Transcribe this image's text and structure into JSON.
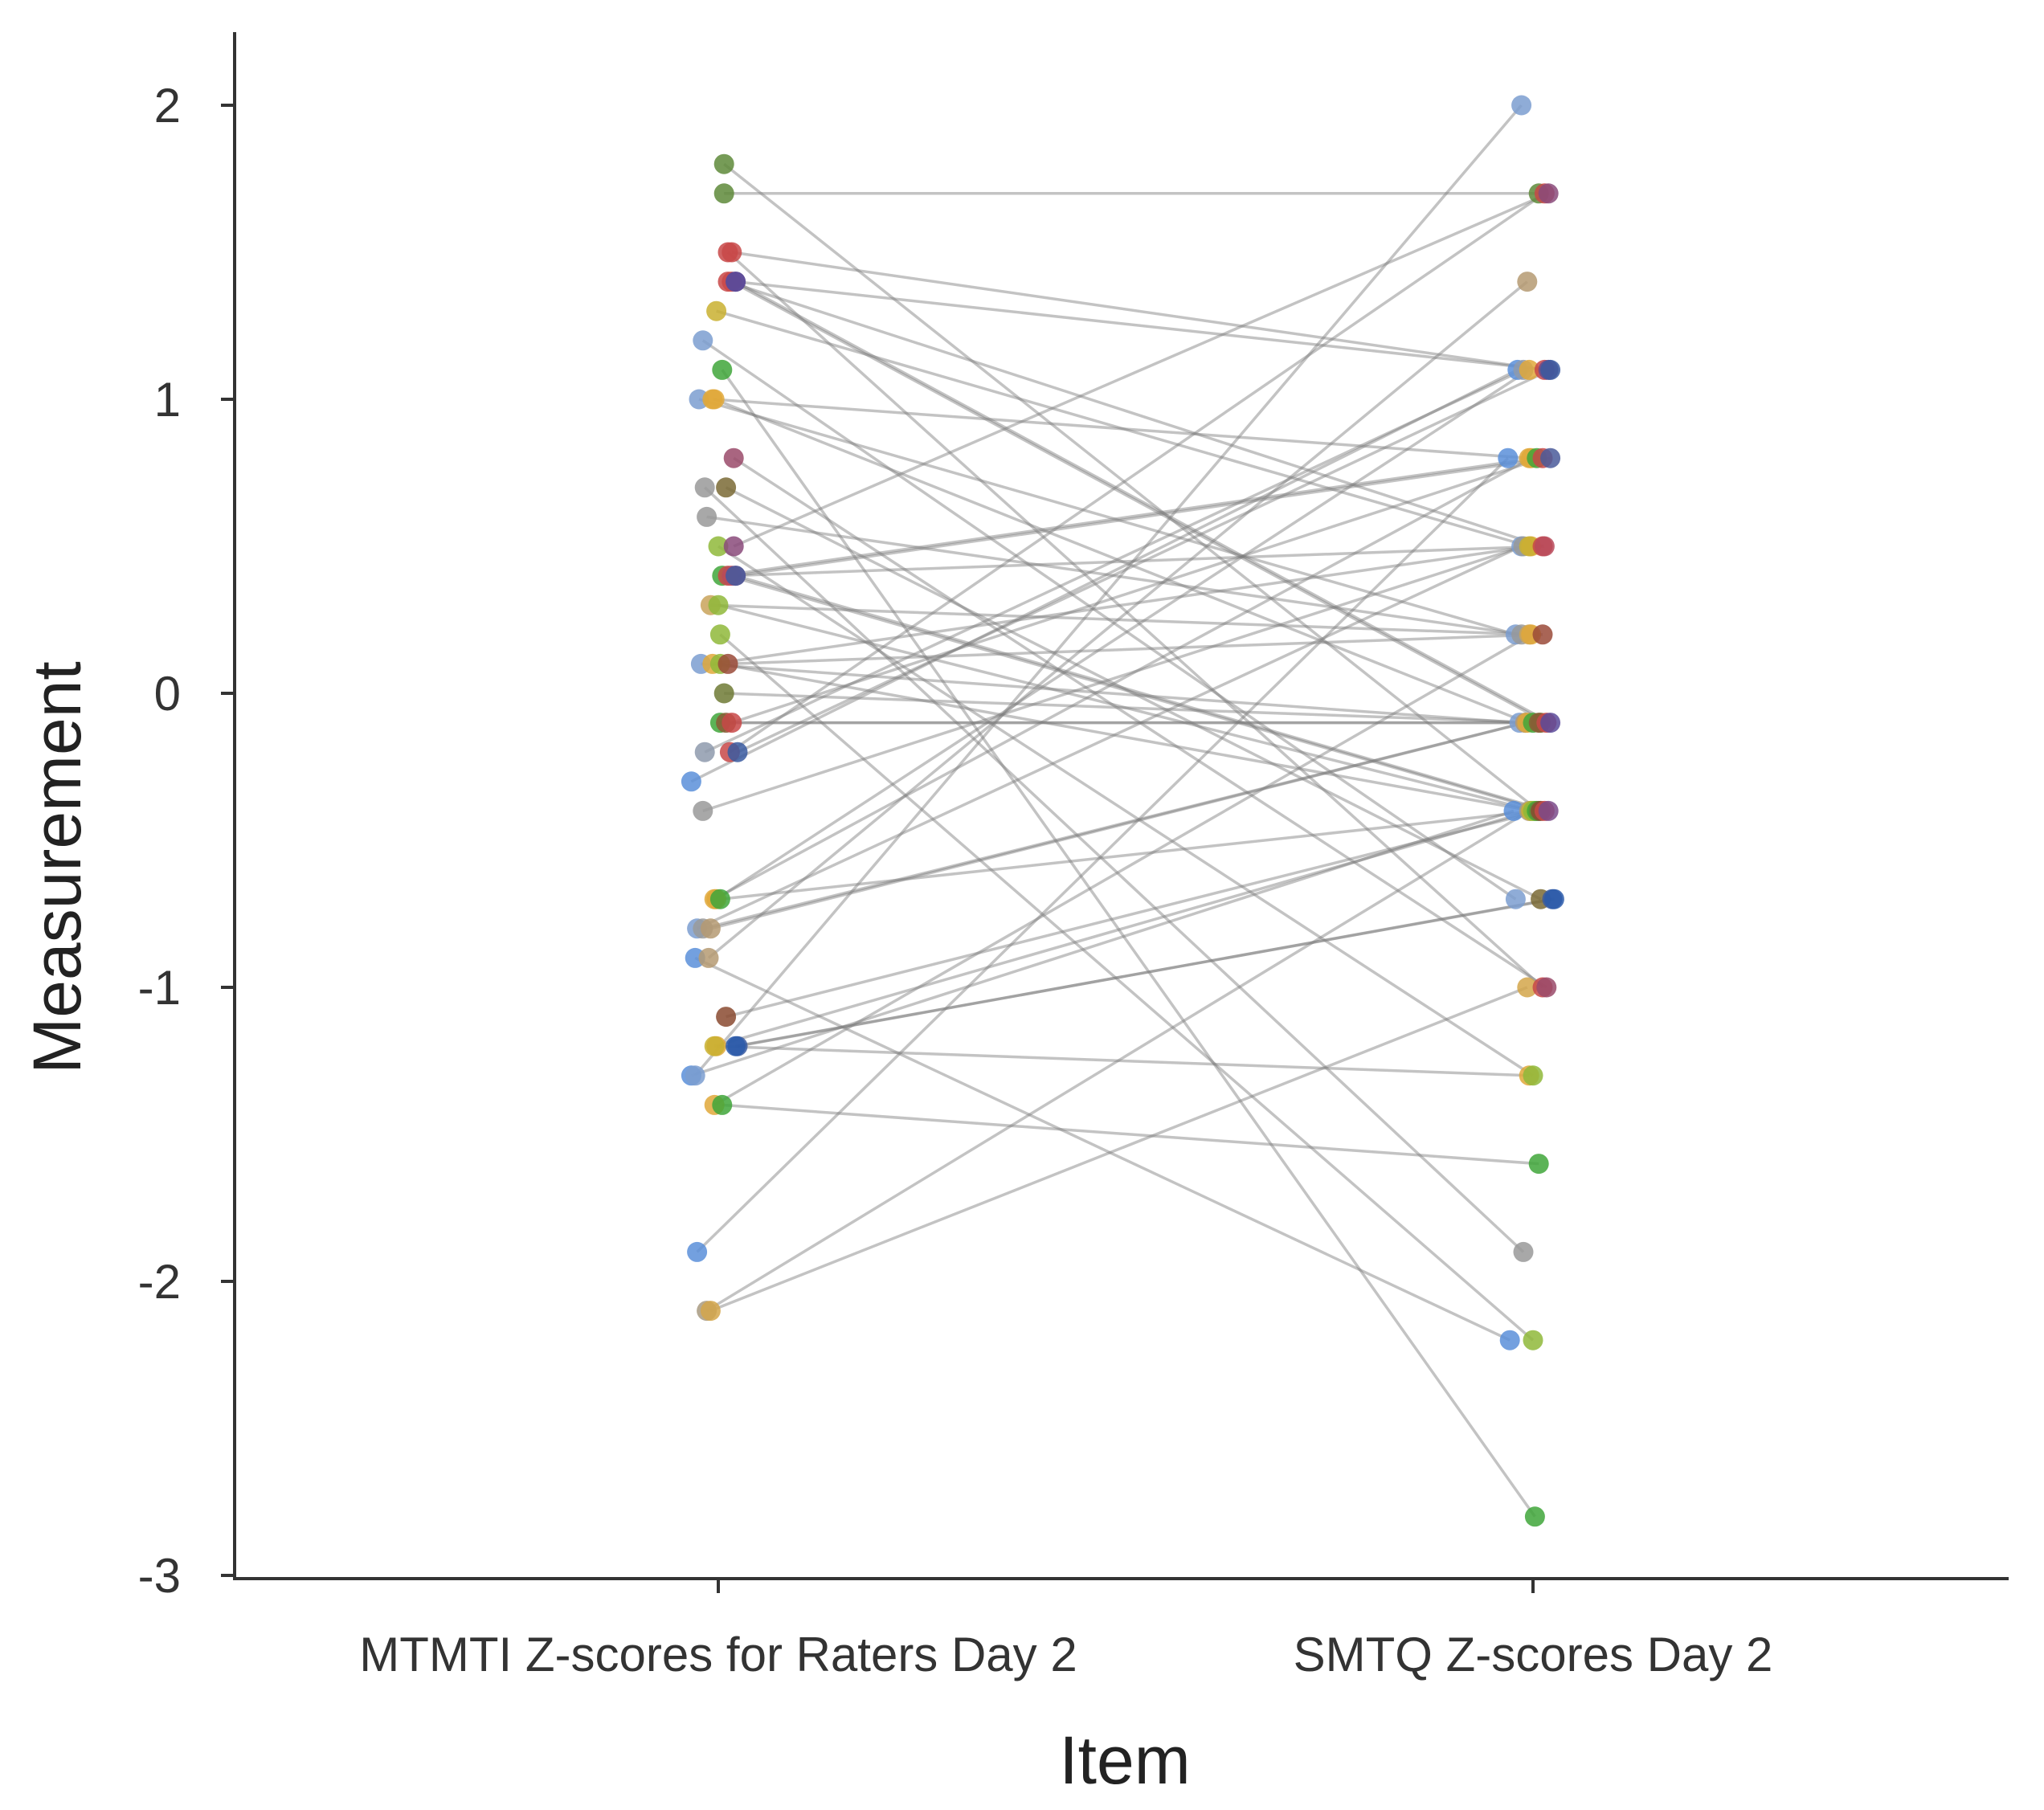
{
  "chart_data": {
    "type": "scatter",
    "subtype": "paired-slope",
    "xlabel": "Item",
    "ylabel": "Measurement",
    "categories": [
      "MTMTI Z-scores for Raters Day 2",
      "SMTQ Z-scores Day 2"
    ],
    "ylim": [
      -3,
      2.2
    ],
    "yticks": [
      2,
      1,
      0,
      -1,
      -2,
      -3
    ],
    "ytick_labels": [
      "2",
      "1",
      "0",
      "-1",
      "-2",
      "-3"
    ],
    "grid": false,
    "legend": "none",
    "pairs": [
      {
        "id": 1,
        "color": "#5b8fd9",
        "left": -1.3,
        "right": -0.4,
        "jl": -0.14,
        "jr": -0.1
      },
      {
        "id": 2,
        "color": "#5b8fd9",
        "left": -0.9,
        "right": -2.2,
        "jl": -0.12,
        "jr": -0.12
      },
      {
        "id": 3,
        "color": "#5b8fd9",
        "left": -1.9,
        "right": 0.8,
        "jl": -0.11,
        "jr": -0.13
      },
      {
        "id": 4,
        "color": "#5b8fd9",
        "left": -0.3,
        "right": 1.1,
        "jl": -0.14,
        "jr": -0.08
      },
      {
        "id": 5,
        "color": "#7b9ed0",
        "left": 1.2,
        "right": -0.7,
        "jl": -0.08,
        "jr": -0.09
      },
      {
        "id": 6,
        "color": "#7b9ed0",
        "left": 1.0,
        "right": 0.2,
        "jl": -0.1,
        "jr": -0.09
      },
      {
        "id": 7,
        "color": "#7b9ed0",
        "left": 0.1,
        "right": -0.1,
        "jl": -0.09,
        "jr": -0.07
      },
      {
        "id": 8,
        "color": "#7b9ed0",
        "left": -0.8,
        "right": 0.5,
        "jl": -0.11,
        "jr": -0.06
      },
      {
        "id": 9,
        "color": "#7b9ed0",
        "left": -1.3,
        "right": 2.0,
        "jl": -0.12,
        "jr": -0.06
      },
      {
        "id": 10,
        "color": "#8e9aad",
        "left": -0.2,
        "right": 1.1,
        "jl": -0.07,
        "jr": -0.05
      },
      {
        "id": 11,
        "color": "#999999",
        "left": 0.7,
        "right": -1.9,
        "jl": -0.07,
        "jr": -0.05
      },
      {
        "id": 12,
        "color": "#999999",
        "left": 0.6,
        "right": 0.2,
        "jl": -0.06,
        "jr": -0.06
      },
      {
        "id": 13,
        "color": "#999999",
        "left": -0.4,
        "right": 0.5,
        "jl": -0.08,
        "jr": -0.05
      },
      {
        "id": 14,
        "color": "#9a9a9a",
        "left": -0.8,
        "right": -0.1,
        "jl": -0.08,
        "jr": -0.04
      },
      {
        "id": 15,
        "color": "#a89a80",
        "left": -2.1,
        "right": -0.4,
        "jl": -0.06,
        "jr": -0.02
      },
      {
        "id": 16,
        "color": "#b59a72",
        "left": -0.9,
        "right": 1.4,
        "jl": -0.05,
        "jr": -0.03
      },
      {
        "id": 17,
        "color": "#b59a72",
        "left": -0.8,
        "right": -0.1,
        "jl": -0.04,
        "jr": -0.04
      },
      {
        "id": 18,
        "color": "#c9a35a",
        "left": 0.3,
        "right": 0.2,
        "jl": -0.04,
        "jr": -0.02
      },
      {
        "id": 19,
        "color": "#d4a64a",
        "left": -2.1,
        "right": -1.0,
        "jl": -0.04,
        "jr": -0.03
      },
      {
        "id": 20,
        "color": "#e0a83a",
        "left": 1.0,
        "right": 0.8,
        "jl": -0.03,
        "jr": -0.02
      },
      {
        "id": 21,
        "color": "#e0a83a",
        "left": 1.0,
        "right": -0.1,
        "jl": -0.02,
        "jr": -0.03
      },
      {
        "id": 22,
        "color": "#e0a83a",
        "left": 0.1,
        "right": 0.5,
        "jl": -0.03,
        "jr": -0.01
      },
      {
        "id": 23,
        "color": "#e0a83a",
        "left": -0.7,
        "right": 0.8,
        "jl": -0.02,
        "jr": -0.01
      },
      {
        "id": 24,
        "color": "#e0a83a",
        "left": -0.7,
        "right": 1.1,
        "jl": -0.01,
        "jr": -0.02
      },
      {
        "id": 25,
        "color": "#e0a83a",
        "left": -1.2,
        "right": -1.3,
        "jl": -0.01,
        "jr": -0.02
      },
      {
        "id": 26,
        "color": "#e0a83a",
        "left": -1.4,
        "right": 0.2,
        "jl": -0.02,
        "jr": -0.01
      },
      {
        "id": 27,
        "color": "#c9b030",
        "left": 1.3,
        "right": 0.5,
        "jl": -0.01,
        "jr": -0.02
      },
      {
        "id": 28,
        "color": "#c9b030",
        "left": -1.2,
        "right": -0.4,
        "jl": -0.02,
        "jr": -0.01
      },
      {
        "id": 29,
        "color": "#8fb83a",
        "left": 0.5,
        "right": -1.3,
        "jl": 0.0,
        "jr": 0.0
      },
      {
        "id": 30,
        "color": "#8fb83a",
        "left": 0.3,
        "right": -0.4,
        "jl": 0.0,
        "jr": 0.01
      },
      {
        "id": 31,
        "color": "#8fb83a",
        "left": 0.2,
        "right": -2.2,
        "jl": 0.01,
        "jr": 0.0
      },
      {
        "id": 32,
        "color": "#8fb83a",
        "left": 0.1,
        "right": -0.4,
        "jl": 0.01,
        "jr": 0.0
      },
      {
        "id": 33,
        "color": "#3fa63a",
        "left": 1.1,
        "right": -2.8,
        "jl": 0.02,
        "jr": 0.01
      },
      {
        "id": 34,
        "color": "#3fa63a",
        "left": 0.4,
        "right": 0.8,
        "jl": 0.02,
        "jr": 0.02
      },
      {
        "id": 35,
        "color": "#3fa63a",
        "left": -0.1,
        "right": -0.1,
        "jl": 0.01,
        "jr": 0.0
      },
      {
        "id": 36,
        "color": "#3fa63a",
        "left": -0.7,
        "right": -0.4,
        "jl": 0.01,
        "jr": 0.02
      },
      {
        "id": 37,
        "color": "#3fa63a",
        "left": -1.4,
        "right": -1.6,
        "jl": 0.02,
        "jr": 0.03
      },
      {
        "id": 38,
        "color": "#5e8a3a",
        "left": 1.8,
        "right": -0.4,
        "jl": 0.03,
        "jr": 0.03
      },
      {
        "id": 39,
        "color": "#5e8a3a",
        "left": 1.7,
        "right": 1.7,
        "jl": 0.03,
        "jr": 0.03
      },
      {
        "id": 40,
        "color": "#6e7a35",
        "left": 0.0,
        "right": -0.1,
        "jl": 0.03,
        "jr": 0.04
      },
      {
        "id": 41,
        "color": "#7a6a35",
        "left": 0.7,
        "right": -0.7,
        "jl": 0.04,
        "jr": 0.04
      },
      {
        "id": 42,
        "color": "#8a5a35",
        "left": -0.1,
        "right": -0.1,
        "jl": 0.04,
        "jr": 0.03
      },
      {
        "id": 43,
        "color": "#8a4a30",
        "left": -1.1,
        "right": -0.4,
        "jl": 0.04,
        "jr": 0.04
      },
      {
        "id": 44,
        "color": "#9a4a38",
        "left": 0.1,
        "right": 0.2,
        "jl": 0.05,
        "jr": 0.05
      },
      {
        "id": 45,
        "color": "#c84848",
        "left": 1.5,
        "right": -1.0,
        "jl": 0.05,
        "jr": 0.05
      },
      {
        "id": 46,
        "color": "#c84848",
        "left": 1.4,
        "right": 0.5,
        "jl": 0.05,
        "jr": 0.05
      },
      {
        "id": 47,
        "color": "#c84848",
        "left": 0.4,
        "right": -0.4,
        "jl": 0.05,
        "jr": 0.06
      },
      {
        "id": 48,
        "color": "#c84848",
        "left": -0.2,
        "right": 1.7,
        "jl": 0.06,
        "jr": 0.06
      },
      {
        "id": 49,
        "color": "#c84848",
        "left": -0.1,
        "right": 0.8,
        "jl": 0.07,
        "jr": 0.05
      },
      {
        "id": 50,
        "color": "#c84848",
        "left": 1.5,
        "right": 1.1,
        "jl": 0.07,
        "jr": 0.06
      },
      {
        "id": 51,
        "color": "#c84848",
        "left": 1.4,
        "right": -0.1,
        "jl": 0.07,
        "jr": 0.07
      },
      {
        "id": 52,
        "color": "#b84a5a",
        "left": 0.4,
        "right": 0.5,
        "jl": 0.07,
        "jr": 0.06
      },
      {
        "id": 53,
        "color": "#9a4a6a",
        "left": 0.8,
        "right": -1.0,
        "jl": 0.08,
        "jr": 0.07
      },
      {
        "id": 54,
        "color": "#8a4a7a",
        "left": 0.5,
        "right": 1.7,
        "jl": 0.08,
        "jr": 0.08
      },
      {
        "id": 55,
        "color": "#7a4a8a",
        "left": 0.4,
        "right": -0.4,
        "jl": 0.09,
        "jr": 0.08
      },
      {
        "id": 56,
        "color": "#6a4a8a",
        "left": 1.4,
        "right": 1.1,
        "jl": 0.09,
        "jr": 0.08
      },
      {
        "id": 57,
        "color": "#5a4a9a",
        "left": 1.4,
        "right": -0.1,
        "jl": 0.09,
        "jr": 0.09
      },
      {
        "id": 58,
        "color": "#4a5a9a",
        "left": 0.4,
        "right": 0.8,
        "jl": 0.09,
        "jr": 0.09
      },
      {
        "id": 59,
        "color": "#3a5aa0",
        "left": -1.2,
        "right": -0.7,
        "jl": 0.1,
        "jr": 0.1
      },
      {
        "id": 60,
        "color": "#3a5aa0",
        "left": -0.2,
        "right": 1.1,
        "jl": 0.1,
        "jr": 0.09
      },
      {
        "id": 61,
        "color": "#2a5aaa",
        "left": -1.2,
        "right": -0.7,
        "jl": 0.09,
        "jr": 0.11
      }
    ]
  }
}
